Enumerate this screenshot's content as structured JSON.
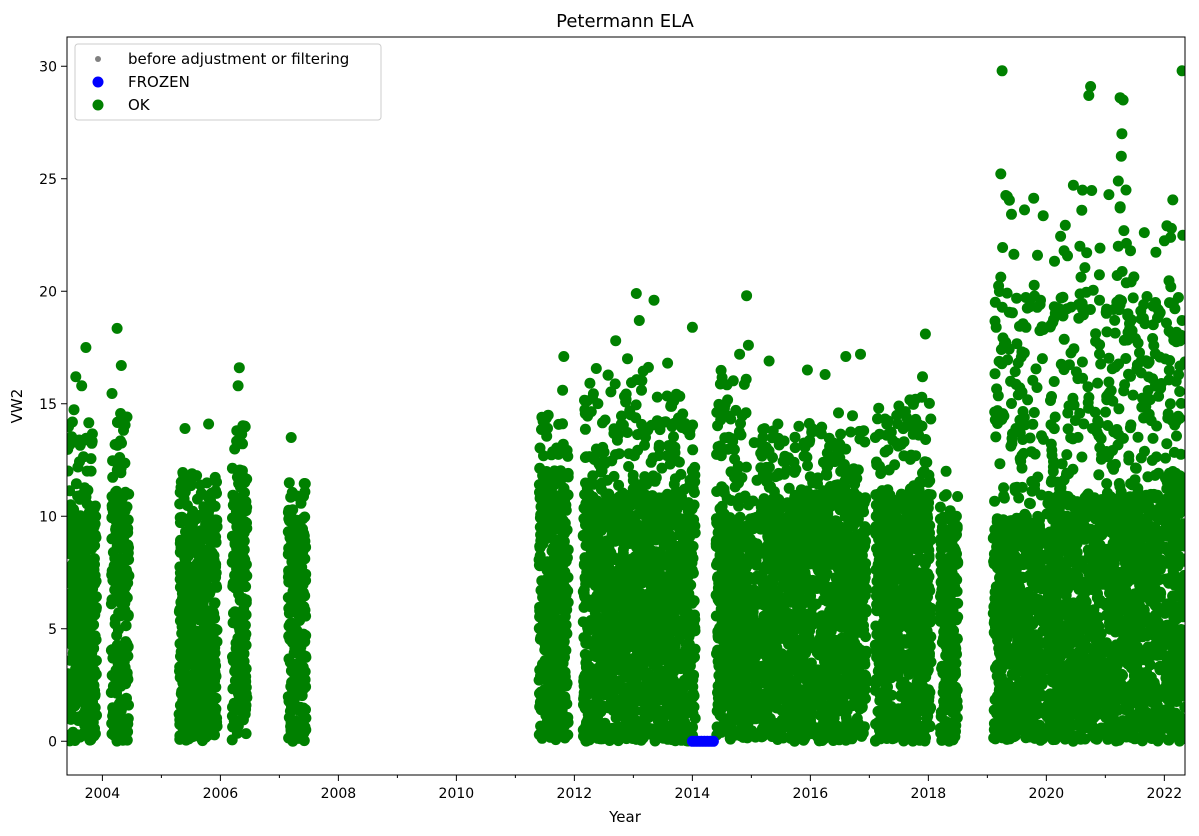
{
  "chart_data": {
    "type": "scatter",
    "title": "Petermann ELA",
    "xlabel": "Year",
    "ylabel": "VW2",
    "xlim": [
      2003.4,
      2022.35
    ],
    "ylim": [
      -1.5,
      31.3
    ],
    "x_ticks": [
      2004,
      2006,
      2008,
      2010,
      2012,
      2014,
      2016,
      2018,
      2020,
      2022
    ],
    "x_tick_labels": [
      "2004",
      "2006",
      "2008",
      "2010",
      "2012",
      "2014",
      "2016",
      "2018",
      "2020",
      "2022"
    ],
    "y_ticks": [
      0,
      5,
      10,
      15,
      20,
      25,
      30
    ],
    "y_tick_labels": [
      "0",
      "5",
      "10",
      "15",
      "20",
      "25",
      "30"
    ],
    "grid": false,
    "legend": {
      "position": "top-left",
      "entries": [
        {
          "label": "before adjustment or filtering",
          "color": "#808080",
          "marker": "small-dot"
        },
        {
          "label": "FROZEN",
          "color": "#0000ff",
          "marker": "dot"
        },
        {
          "label": "OK",
          "color": "#008000",
          "marker": "dot"
        }
      ]
    },
    "series": [
      {
        "name": "OK",
        "color": "#008000",
        "segments": [
          {
            "x_range": [
              2003.4,
              2003.9
            ],
            "max": 17.5,
            "dense_max": 10,
            "peaks": [
              [
                2003.55,
                16.2
              ],
              [
                2003.72,
                17.5
              ],
              [
                2003.65,
                15.8
              ]
            ]
          },
          {
            "x_range": [
              2004.15,
              2004.45
            ],
            "max": 18.4,
            "dense_max": 11,
            "peaks": [
              [
                2004.25,
                18.35
              ],
              [
                2004.32,
                16.7
              ]
            ]
          },
          {
            "x_range": [
              2005.3,
              2005.95
            ],
            "max": 14.1,
            "dense_max": 10,
            "peaks": [
              [
                2005.4,
                13.9
              ],
              [
                2005.8,
                14.1
              ]
            ]
          },
          {
            "x_range": [
              2006.2,
              2006.45
            ],
            "max": 16.6,
            "dense_max": 12,
            "peaks": [
              [
                2006.32,
                16.6
              ],
              [
                2006.3,
                15.8
              ]
            ]
          },
          {
            "x_range": [
              2007.15,
              2007.45
            ],
            "max": 13.5,
            "dense_max": 10,
            "peaks": [
              [
                2007.2,
                13.5
              ]
            ]
          },
          {
            "x_range": [
              2011.4,
              2011.9
            ],
            "max": 17.1,
            "dense_max": 12,
            "peaks": [
              [
                2011.82,
                17.1
              ],
              [
                2011.8,
                15.6
              ],
              [
                2011.45,
                14.4
              ]
            ]
          },
          {
            "x_range": [
              2012.15,
              2013.95
            ],
            "max": 19.9,
            "dense_max": 11,
            "peaks": [
              [
                2013.05,
                19.9
              ],
              [
                2013.35,
                19.6
              ],
              [
                2012.7,
                17.8
              ],
              [
                2013.1,
                18.7
              ],
              [
                2012.9,
                17.0
              ]
            ]
          },
          {
            "x_range": [
              2013.95,
              2014.05
            ],
            "max": 18.4,
            "dense_max": 12,
            "peaks": [
              [
                2014.0,
                18.4
              ]
            ]
          },
          {
            "x_range": [
              2014.4,
              2015.1
            ],
            "max": 19.8,
            "dense_max": 10,
            "peaks": [
              [
                2014.92,
                19.8
              ],
              [
                2014.95,
                17.6
              ],
              [
                2014.8,
                17.2
              ]
            ]
          },
          {
            "x_range": [
              2015.15,
              2016.05
            ],
            "max": 16.9,
            "dense_max": 11,
            "peaks": [
              [
                2015.3,
                16.9
              ],
              [
                2015.95,
                16.5
              ]
            ]
          },
          {
            "x_range": [
              2016.1,
              2016.95
            ],
            "max": 17.2,
            "dense_max": 11,
            "peaks": [
              [
                2016.25,
                16.3
              ],
              [
                2016.6,
                17.1
              ],
              [
                2016.85,
                17.2
              ]
            ]
          },
          {
            "x_range": [
              2017.1,
              2018.05
            ],
            "max": 18.1,
            "dense_max": 11,
            "peaks": [
              [
                2017.5,
                14.9
              ],
              [
                2017.95,
                18.1
              ],
              [
                2017.9,
                16.2
              ]
            ]
          },
          {
            "x_range": [
              2018.2,
              2018.5
            ],
            "max": 12.0,
            "dense_max": 10,
            "peaks": [
              [
                2018.3,
                12.0
              ]
            ]
          },
          {
            "x_range": [
              2019.1,
              2019.95
            ],
            "max": 29.8,
            "dense_max": 10,
            "peaks": [
              [
                2019.25,
                29.8
              ],
              [
                2019.15,
                18.4
              ],
              [
                2019.85,
                21.6
              ],
              [
                2019.9,
                19.6
              ],
              [
                2019.95,
                18.3
              ]
            ]
          },
          {
            "x_range": [
              2020.0,
              2020.95
            ],
            "max": 29.1,
            "dense_max": 11,
            "peaks": [
              [
                2020.3,
                21.8
              ],
              [
                2020.25,
                19.7
              ],
              [
                2020.55,
                18.8
              ],
              [
                2020.75,
                29.1
              ],
              [
                2020.72,
                28.7
              ],
              [
                2020.6,
                23.6
              ],
              [
                2020.9,
                19.6
              ]
            ]
          },
          {
            "x_range": [
              2021.0,
              2021.95
            ],
            "max": 28.6,
            "dense_max": 11,
            "peaks": [
              [
                2021.25,
                28.6
              ],
              [
                2021.3,
                28.5
              ],
              [
                2021.28,
                27.0
              ],
              [
                2021.27,
                26.0
              ],
              [
                2021.22,
                24.9
              ],
              [
                2021.35,
                24.5
              ],
              [
                2021.25,
                23.7
              ],
              [
                2021.22,
                22.0
              ],
              [
                2021.2,
                20.7
              ],
              [
                2021.25,
                19.4
              ],
              [
                2021.85,
                19.5
              ],
              [
                2021.8,
                17.9
              ]
            ]
          },
          {
            "x_range": [
              2022.0,
              2022.35
            ],
            "max": 29.8,
            "dense_max": 12,
            "peaks": [
              [
                2022.3,
                29.8
              ],
              [
                2022.3,
                18.7
              ],
              [
                2022.2,
                16.0
              ]
            ]
          }
        ]
      },
      {
        "name": "FROZEN",
        "color": "#0000ff",
        "segments": [
          {
            "x_range": [
              2014.0,
              2014.4
            ],
            "y": 0
          }
        ]
      }
    ]
  }
}
